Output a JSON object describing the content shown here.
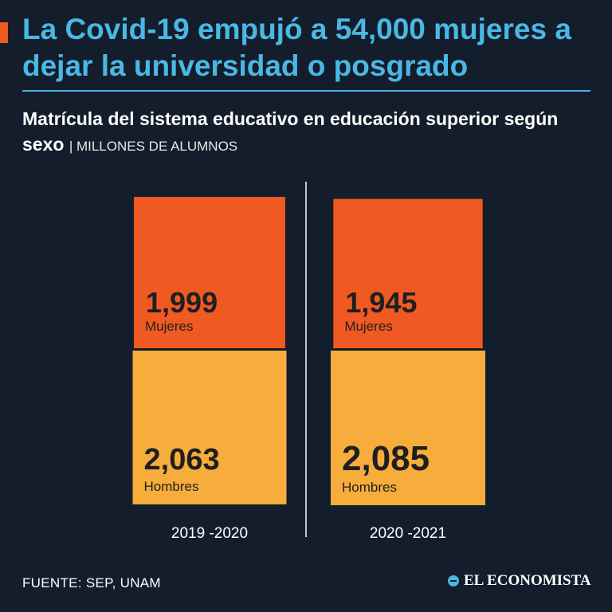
{
  "headline": "La Covid-19 empujó a 54,000 mujeres a dejar la universidad o posgrado",
  "subtitle": {
    "main": "Matrícula del sistema educativo en educación superior según sexo",
    "unit": "| MILLONES DE ALUMNOS"
  },
  "source": "FUENTE: SEP, UNAM",
  "brand": "EL ECONOMISTA",
  "colors": {
    "background": "#141d2b",
    "accent": "#f05a22",
    "headline": "#4ab8e4",
    "mujeres": "#f05a22",
    "hombres": "#f7ad3b"
  },
  "chart_data": {
    "type": "bar",
    "categories": [
      "2019 -2020",
      "2020 -2021"
    ],
    "series": [
      {
        "name": "Mujeres",
        "values": [
          1.999,
          1.945
        ],
        "labels": [
          "1,999",
          "1,945"
        ]
      },
      {
        "name": "Hombres",
        "values": [
          2.063,
          2.085
        ],
        "labels": [
          "2,063",
          "2,085"
        ]
      }
    ]
  }
}
